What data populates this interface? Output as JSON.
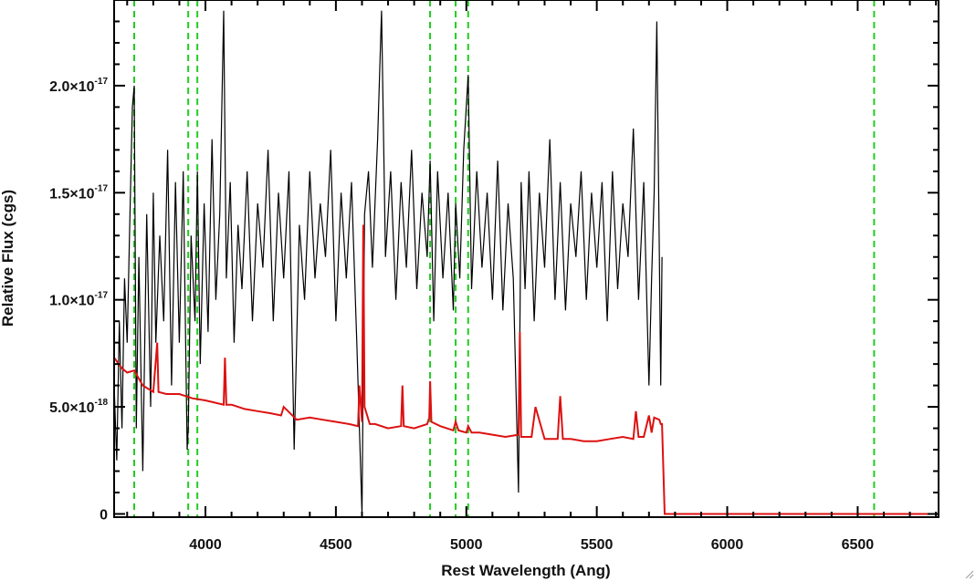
{
  "chart_data": {
    "type": "line",
    "title": "",
    "xlabel": "Rest Wavelength (Ang)",
    "ylabel": "Relative Flux (cgs)",
    "xlim": [
      3650,
      6810
    ],
    "ylim": [
      -1.5e-19,
      2.4e-17
    ],
    "x_ticks": [
      {
        "value": 4000,
        "label": "4000"
      },
      {
        "value": 4500,
        "label": "4500"
      },
      {
        "value": 5000,
        "label": "5000"
      },
      {
        "value": 5500,
        "label": "5500"
      },
      {
        "value": 6000,
        "label": "6000"
      },
      {
        "value": 6500,
        "label": "6500"
      }
    ],
    "y_ticks": [
      {
        "value": 0,
        "mantissa": "0",
        "exponent": ""
      },
      {
        "value": 5e-18,
        "mantissa": "5.0×10",
        "exponent": "-18"
      },
      {
        "value": 1e-17,
        "mantissa": "1.0×10",
        "exponent": "-17"
      },
      {
        "value": 1.5e-17,
        "mantissa": "1.5×10",
        "exponent": "-17"
      },
      {
        "value": 2e-17,
        "mantissa": "2.0×10",
        "exponent": "-17"
      }
    ],
    "grid": false,
    "reference_lines": {
      "color": "#22cc22",
      "style": "dashed",
      "x": [
        3727,
        3934,
        3969,
        4861,
        4959,
        5007,
        6563
      ]
    },
    "series": [
      {
        "color": "#000000",
        "x": [
          3650,
          3660,
          3670,
          3680,
          3690,
          3700,
          3710,
          3720,
          3727,
          3735,
          3745,
          3760,
          3775,
          3790,
          3800,
          3810,
          3825,
          3840,
          3855,
          3870,
          3885,
          3900,
          3915,
          3930,
          3934,
          3945,
          3960,
          3969,
          3980,
          3995,
          4010,
          4025,
          4040,
          4055,
          4070,
          4080,
          4095,
          4110,
          4125,
          4140,
          4160,
          4180,
          4200,
          4220,
          4240,
          4260,
          4280,
          4300,
          4320,
          4340,
          4360,
          4380,
          4400,
          4420,
          4440,
          4460,
          4480,
          4500,
          4520,
          4540,
          4560,
          4580,
          4600,
          4610,
          4625,
          4640,
          4660,
          4675,
          4690,
          4710,
          4730,
          4750,
          4770,
          4790,
          4810,
          4830,
          4850,
          4861,
          4875,
          4890,
          4910,
          4930,
          4950,
          4959,
          4975,
          4990,
          5007,
          5020,
          5040,
          5060,
          5080,
          5100,
          5120,
          5140,
          5160,
          5180,
          5200,
          5210,
          5225,
          5240,
          5260,
          5280,
          5300,
          5320,
          5340,
          5360,
          5380,
          5400,
          5420,
          5440,
          5460,
          5480,
          5500,
          5520,
          5540,
          5560,
          5580,
          5600,
          5620,
          5640,
          5660,
          5680,
          5700,
          5710,
          5720,
          5730,
          5740,
          5745,
          5750
        ],
        "y": [
          6e-18,
          2.5e-18,
          9e-18,
          4e-18,
          1.1e-17,
          8e-18,
          1.35e-17,
          1.9e-17,
          2e-17,
          4e-18,
          1.2e-17,
          2e-18,
          1.4e-17,
          5e-18,
          1.5e-17,
          8e-18,
          1.3e-17,
          9e-18,
          1.7e-17,
          6e-18,
          1.55e-17,
          8e-18,
          1.6e-17,
          3e-18,
          4e-18,
          1.3e-17,
          9e-18,
          1.6e-17,
          7e-18,
          1.45e-17,
          8.5e-18,
          1.75e-17,
          1e-17,
          1.4e-17,
          2.35e-17,
          1.1e-17,
          1.55e-17,
          8e-18,
          1.35e-17,
          1.05e-17,
          1.6e-17,
          9e-18,
          1.45e-17,
          1.15e-17,
          1.7e-17,
          9e-18,
          1.5e-17,
          1.1e-17,
          1.6e-17,
          3e-18,
          1.35e-17,
          1e-17,
          1.6e-17,
          1.1e-17,
          1.45e-17,
          1.2e-17,
          1.7e-17,
          9e-18,
          1.5e-17,
          1.1e-17,
          1.55e-17,
          8e-18,
          0.0,
          1.4e-17,
          1.6e-17,
          1.15e-17,
          1.75e-17,
          2.35e-17,
          1.2e-17,
          1.6e-17,
          1e-17,
          1.55e-17,
          1.15e-17,
          1.7e-17,
          1.05e-17,
          1.5e-17,
          1.2e-17,
          1.65e-17,
          9e-18,
          1.6e-17,
          1.1e-17,
          1.5e-17,
          9.5e-18,
          1.45e-17,
          1.1e-17,
          1.7e-17,
          2.05e-17,
          1.05e-17,
          1.6e-17,
          1.15e-17,
          1.5e-17,
          1e-17,
          1.65e-17,
          9.5e-18,
          1.45e-17,
          1.1e-17,
          1e-18,
          1.55e-17,
          1.05e-17,
          1.6e-17,
          9e-18,
          1.5e-17,
          1.15e-17,
          1.75e-17,
          1e-17,
          1.55e-17,
          9.5e-18,
          1.45e-17,
          1.2e-17,
          1.6e-17,
          1e-17,
          1.5e-17,
          1.15e-17,
          1.55e-17,
          9e-18,
          1.6e-17,
          1.05e-17,
          1.45e-17,
          1.2e-17,
          1.8e-17,
          1e-17,
          1.55e-17,
          6e-18,
          1.1e-17,
          1.5e-17,
          2.3e-17,
          1.2e-17,
          6e-18,
          1.2e-17
        ]
      },
      {
        "color": "#dd1111",
        "x": [
          3650,
          3680,
          3700,
          3727,
          3760,
          3800,
          3815,
          3820,
          3850,
          3900,
          3950,
          4000,
          4070,
          4075,
          4080,
          4100,
          4150,
          4200,
          4250,
          4290,
          4300,
          4350,
          4400,
          4450,
          4500,
          4550,
          4585,
          4590,
          4600,
          4605,
          4610,
          4630,
          4650,
          4700,
          4750,
          4755,
          4760,
          4800,
          4850,
          4858,
          4861,
          4866,
          4900,
          4950,
          4959,
          4970,
          5000,
          5007,
          5020,
          5050,
          5100,
          5150,
          5200,
          5205,
          5210,
          5250,
          5265,
          5300,
          5350,
          5360,
          5370,
          5400,
          5450,
          5500,
          5550,
          5600,
          5640,
          5650,
          5660,
          5680,
          5700,
          5710,
          5720,
          5740,
          5745,
          5750,
          5760,
          5800,
          6000,
          6200,
          6400,
          6600,
          6810
        ],
        "y": [
          7.3e-18,
          6.8e-18,
          6.6e-18,
          6.7e-18,
          6e-18,
          5.7e-18,
          8e-18,
          5.7e-18,
          5.6e-18,
          5.6e-18,
          5.4e-18,
          5.3e-18,
          5.1e-18,
          7.3e-18,
          5.1e-18,
          5.1e-18,
          4.9e-18,
          4.8e-18,
          4.7e-18,
          4.6e-18,
          5e-18,
          4.4e-18,
          4.5e-18,
          4.4e-18,
          4.3e-18,
          4.2e-18,
          4.1e-18,
          6e-18,
          4.3e-18,
          1.35e-17,
          5e-18,
          4.2e-18,
          4.2e-18,
          4e-18,
          4.1e-18,
          6e-18,
          4.1e-18,
          4e-18,
          4.2e-18,
          4.5e-18,
          6.2e-18,
          4.3e-18,
          4.1e-18,
          3.9e-18,
          4.3e-18,
          3.9e-18,
          3.8e-18,
          4.1e-18,
          3.8e-18,
          3.8e-18,
          3.7e-18,
          3.6e-18,
          3.7e-18,
          8.5e-18,
          3.6e-18,
          3.6e-18,
          5e-18,
          3.5e-18,
          3.5e-18,
          5.5e-18,
          3.5e-18,
          3.5e-18,
          3.4e-18,
          3.4e-18,
          3.5e-18,
          3.6e-18,
          3.5e-18,
          4.8e-18,
          3.6e-18,
          3.6e-18,
          4.6e-18,
          3.8e-18,
          4.5e-18,
          4.4e-18,
          4.2e-18,
          4.2e-18,
          0.0,
          0.0,
          0.0,
          0.0,
          0.0,
          0.0,
          0.0
        ]
      }
    ]
  }
}
